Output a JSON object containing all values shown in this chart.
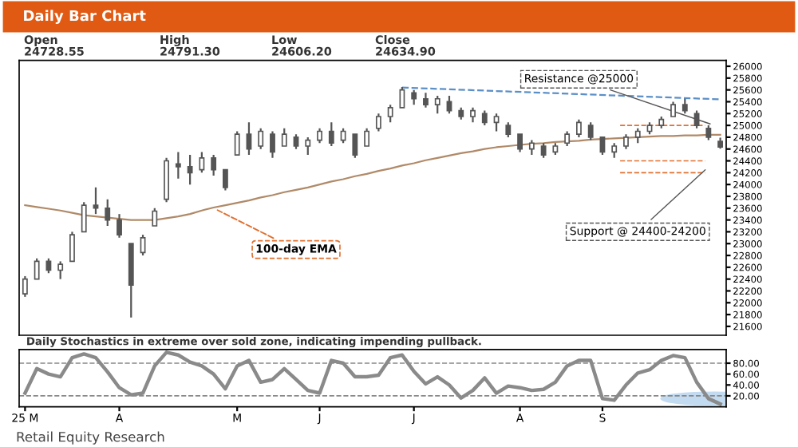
{
  "chart_data": [
    {
      "type": "candlestick",
      "title": "Daily Bar Chart",
      "annotations": [
        "Open",
        "High",
        "Low",
        "Close",
        "24728.55",
        "24791.30",
        "24606.20",
        "24634.90",
        "Resistance @25000",
        "100-day EMA",
        "Support @ 24400-24200",
        "Retail Equity Research"
      ],
      "categories": [
        null,
        null,
        null,
        null,
        null,
        null,
        null,
        null,
        null,
        null,
        null,
        null,
        null,
        null,
        null,
        null,
        null,
        null,
        null,
        null,
        null,
        null,
        null,
        null,
        null,
        null,
        null,
        null,
        null,
        null,
        null,
        null,
        null,
        null,
        null,
        null,
        null,
        null,
        null,
        null,
        null,
        null,
        null,
        null,
        null,
        null,
        null,
        null,
        null,
        null,
        null,
        null,
        null,
        null,
        null,
        null,
        null,
        null,
        null,
        null
      ],
      "color": "#555555",
      "ohlc": [
        [
          22150,
          22450,
          22100,
          22400
        ],
        [
          22400,
          22750,
          22400,
          22700
        ],
        [
          22700,
          22750,
          22500,
          22550
        ],
        [
          22550,
          22700,
          22400,
          22650
        ],
        [
          22700,
          23200,
          22700,
          23150
        ],
        [
          23200,
          23700,
          23200,
          23650
        ],
        [
          23650,
          23950,
          23500,
          23600
        ],
        [
          23600,
          23750,
          23300,
          23400
        ],
        [
          23400,
          23500,
          23100,
          23150
        ],
        [
          23000,
          23000,
          21750,
          22300
        ],
        [
          22850,
          23150,
          22800,
          23100
        ],
        [
          23300,
          23600,
          23300,
          23550
        ],
        [
          23750,
          24450,
          23700,
          24400
        ],
        [
          24350,
          24550,
          24100,
          24300
        ],
        [
          24300,
          24500,
          24000,
          24200
        ],
        [
          24250,
          24550,
          24200,
          24450
        ],
        [
          24450,
          24500,
          24150,
          24250
        ],
        [
          24250,
          24250,
          23900,
          23950
        ],
        [
          24500,
          24900,
          24500,
          24850
        ],
        [
          24850,
          25050,
          24500,
          24600
        ],
        [
          24650,
          24950,
          24600,
          24900
        ],
        [
          24850,
          24900,
          24450,
          24550
        ],
        [
          24650,
          24950,
          24650,
          24850
        ],
        [
          24800,
          24850,
          24600,
          24650
        ],
        [
          24650,
          24800,
          24500,
          24750
        ],
        [
          24750,
          24950,
          24700,
          24900
        ],
        [
          24900,
          25050,
          24650,
          24700
        ],
        [
          24750,
          24950,
          24700,
          24900
        ],
        [
          24850,
          24850,
          24450,
          24500
        ],
        [
          24650,
          24950,
          24650,
          24900
        ],
        [
          24950,
          25200,
          24900,
          25150
        ],
        [
          25150,
          25350,
          25050,
          25300
        ],
        [
          25300,
          25650,
          25300,
          25600
        ],
        [
          25550,
          25600,
          25350,
          25450
        ],
        [
          25450,
          25550,
          25300,
          25350
        ],
        [
          25350,
          25500,
          25200,
          25450
        ],
        [
          25400,
          25500,
          25200,
          25250
        ],
        [
          25250,
          25300,
          25100,
          25150
        ],
        [
          25150,
          25300,
          25050,
          25250
        ],
        [
          25200,
          25250,
          25000,
          25050
        ],
        [
          25050,
          25200,
          24900,
          25150
        ],
        [
          25000,
          25050,
          24800,
          24850
        ],
        [
          24850,
          24850,
          24550,
          24600
        ],
        [
          24600,
          24750,
          24500,
          24700
        ],
        [
          24650,
          24700,
          24450,
          24500
        ],
        [
          24550,
          24700,
          24500,
          24650
        ],
        [
          24700,
          24900,
          24650,
          24850
        ],
        [
          24850,
          25100,
          24800,
          25050
        ],
        [
          25000,
          25050,
          24750,
          24800
        ],
        [
          24800,
          24800,
          24500,
          24550
        ],
        [
          24550,
          24700,
          24450,
          24650
        ],
        [
          24650,
          24850,
          24600,
          24800
        ],
        [
          24800,
          24950,
          24700,
          24900
        ],
        [
          24900,
          25050,
          24850,
          25000
        ],
        [
          25000,
          25150,
          24950,
          25100
        ],
        [
          25150,
          25400,
          25150,
          25350
        ],
        [
          25350,
          25450,
          25200,
          25250
        ],
        [
          25200,
          25250,
          24950,
          25000
        ],
        [
          24950,
          25000,
          24750,
          24800
        ],
        [
          24728.55,
          24791.3,
          24606.2,
          24634.9
        ]
      ],
      "series": [
        {
          "type": "line",
          "color": "#b08a68",
          "line_style": "solid",
          "values": [
            23650,
            23620,
            23590,
            23560,
            23520,
            23480,
            23460,
            23440,
            23420,
            23400,
            23400,
            23400,
            23430,
            23460,
            23500,
            23560,
            23610,
            23650,
            23690,
            23730,
            23780,
            23820,
            23870,
            23910,
            23950,
            24000,
            24050,
            24090,
            24140,
            24180,
            24230,
            24270,
            24320,
            24360,
            24410,
            24450,
            24490,
            24530,
            24560,
            24600,
            24630,
            24650,
            24670,
            24690,
            24700,
            24720,
            24730,
            24740,
            24760,
            24770,
            24780,
            24790,
            24800,
            24810,
            24820,
            24820,
            24830,
            24830,
            24840,
            24840
          ]
        },
        {
          "type": "line",
          "color": "#5b8fc7",
          "line_style": "dashed",
          "values": [
            null,
            null,
            null,
            null,
            null,
            null,
            null,
            null,
            null,
            null,
            null,
            null,
            null,
            null,
            null,
            null,
            null,
            null,
            null,
            null,
            null,
            null,
            null,
            null,
            null,
            null,
            null,
            null,
            null,
            null,
            null,
            null,
            25640,
            null,
            null,
            null,
            null,
            null,
            null,
            null,
            null,
            null,
            null,
            null,
            null,
            null,
            null,
            null,
            null,
            null,
            null,
            null,
            null,
            null,
            null,
            null,
            null,
            null,
            null,
            25440
          ]
        }
      ],
      "ref_lines": [
        {
          "axis": "y",
          "value": 25000,
          "color": "#e07030",
          "line_style": "dashed"
        },
        {
          "axis": "y",
          "value": 24400,
          "color": "#e07030",
          "line_style": "dashed"
        },
        {
          "axis": "y",
          "value": 24200,
          "color": "#e07030",
          "line_style": "dashed"
        }
      ],
      "ylim": [
        21450,
        26100
      ],
      "yticks": [
        21600,
        21800,
        22000,
        22200,
        22400,
        22600,
        22800,
        23000,
        23200,
        23400,
        23600,
        23800,
        24000,
        24200,
        24400,
        24600,
        24800,
        25000,
        25200,
        25400,
        25600,
        25800,
        26000
      ],
      "tick_labels": "y",
      "grid": false,
      "legend": false
    },
    {
      "type": "line",
      "annotations": [
        "Daily Stochastics in extreme over sold zone, indicating impending pullback."
      ],
      "categories": [
        "25 M",
        null,
        null,
        null,
        null,
        null,
        null,
        null,
        "A",
        null,
        null,
        null,
        null,
        null,
        null,
        null,
        null,
        null,
        "M",
        null,
        null,
        null,
        null,
        null,
        null,
        "J",
        null,
        null,
        null,
        null,
        null,
        null,
        null,
        "J",
        null,
        null,
        null,
        null,
        null,
        null,
        null,
        null,
        "A",
        null,
        null,
        null,
        null,
        null,
        null,
        "S",
        null,
        null,
        null,
        null,
        null,
        null,
        null,
        null,
        null,
        null
      ],
      "series": [
        {
          "color": "#8a8a8a",
          "values": [
            25,
            70,
            60,
            55,
            90,
            97,
            90,
            64,
            35,
            22,
            25,
            75,
            100,
            95,
            82,
            75,
            60,
            33,
            75,
            85,
            45,
            50,
            70,
            50,
            30,
            25,
            85,
            80,
            55,
            55,
            58,
            90,
            95,
            65,
            42,
            55,
            40,
            16,
            30,
            53,
            25,
            38,
            35,
            30,
            32,
            45,
            75,
            85,
            85,
            15,
            12,
            40,
            62,
            68,
            85,
            94,
            90,
            45,
            15,
            5
          ]
        }
      ],
      "ref_lines": [
        {
          "axis": "y",
          "value": 80,
          "color": "#888888",
          "line_style": "dashed"
        },
        {
          "axis": "y",
          "value": 20,
          "color": "#888888",
          "line_style": "dashed"
        }
      ],
      "ylim": [
        0,
        105
      ],
      "yticks": [
        {
          "value": 20,
          "label": "20.00"
        },
        {
          "value": 40,
          "label": "40.00"
        },
        {
          "value": 60,
          "label": "60.00"
        },
        {
          "value": 80,
          "label": "80.00"
        }
      ],
      "marker": "none",
      "line_style": "solid",
      "grid": false,
      "legend": false
    }
  ]
}
